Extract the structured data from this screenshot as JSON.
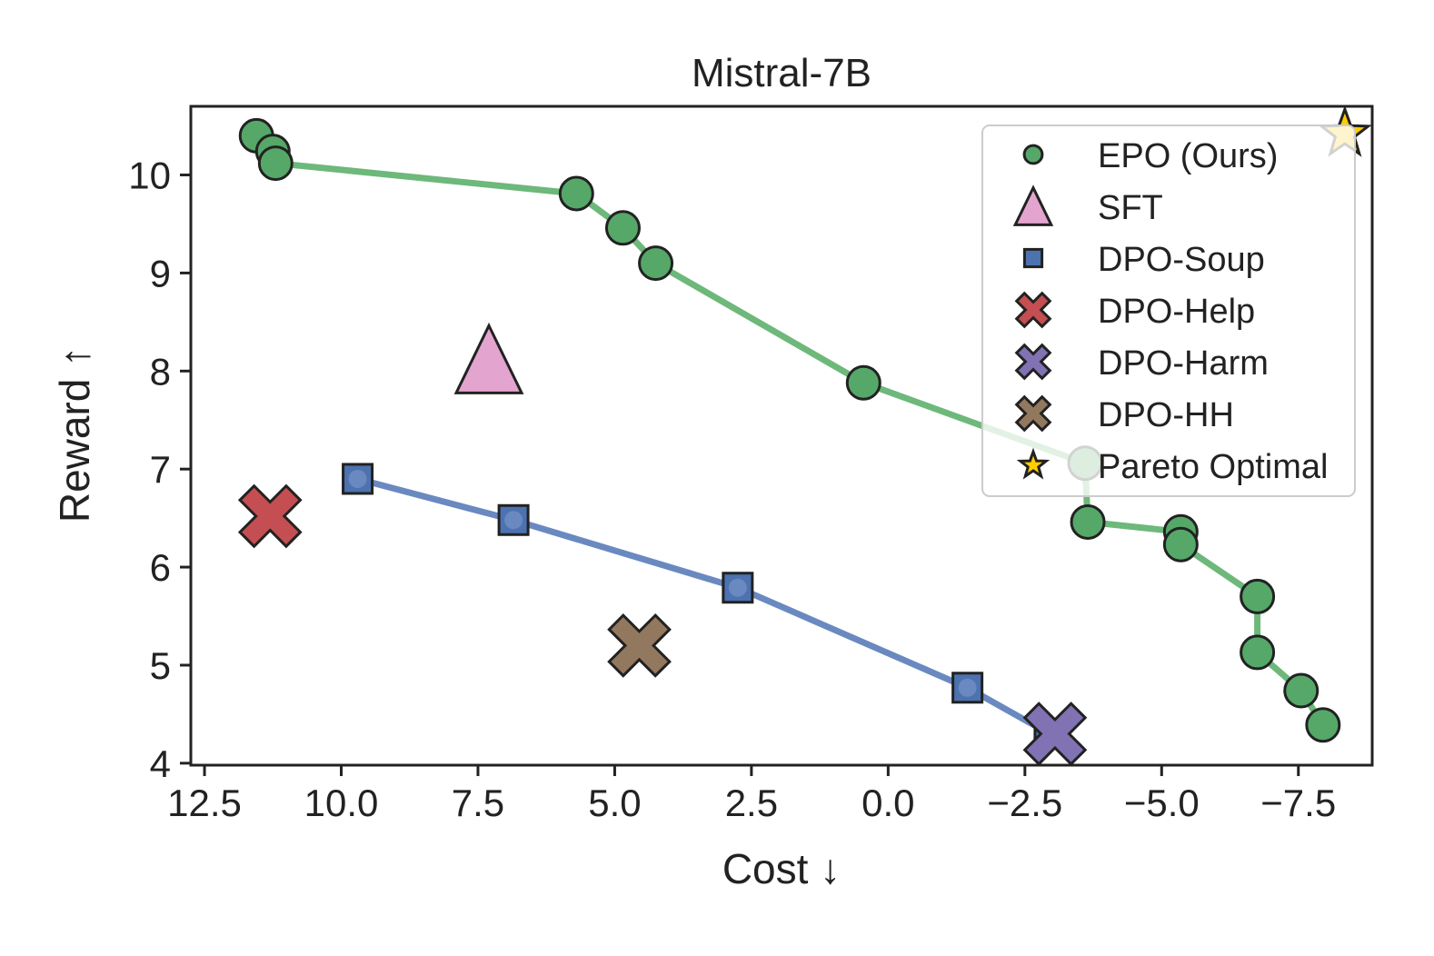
{
  "chart_data": {
    "type": "scatter",
    "title": "Mistral-7B",
    "xlabel": "Cost ↓",
    "ylabel": "Reward ↑",
    "xlim": [
      12.75,
      -8.85
    ],
    "ylim": [
      3.98,
      10.7
    ],
    "x_inverted": true,
    "xticks": [
      12.5,
      10.0,
      7.5,
      5.0,
      2.5,
      0.0,
      -2.5,
      -5.0,
      -7.5
    ],
    "xtick_labels": [
      "12.5",
      "10.0",
      "7.5",
      "5.0",
      "2.5",
      "0.0",
      "−2.5",
      "−5.0",
      "−7.5"
    ],
    "yticks": [
      4,
      5,
      6,
      7,
      8,
      9,
      10
    ],
    "ytick_labels": [
      "4",
      "5",
      "6",
      "7",
      "8",
      "9",
      "10"
    ],
    "grid": false,
    "legend_position": "top-right",
    "series": [
      {
        "name": "EPO (Ours)",
        "marker": "circle",
        "color": "#55a868",
        "line": true,
        "line_color": "#6db87a",
        "points": [
          [
            11.55,
            10.4
          ],
          [
            11.25,
            10.24
          ],
          [
            11.2,
            10.12
          ],
          [
            5.7,
            9.81
          ],
          [
            4.85,
            9.46
          ],
          [
            4.25,
            9.1
          ],
          [
            0.45,
            7.88
          ],
          [
            -3.6,
            7.06
          ],
          [
            -3.65,
            6.46
          ],
          [
            -5.35,
            6.36
          ],
          [
            -5.35,
            6.23
          ],
          [
            -6.75,
            5.7
          ],
          [
            -6.75,
            5.13
          ],
          [
            -7.55,
            4.74
          ],
          [
            -7.95,
            4.39
          ]
        ]
      },
      {
        "name": "SFT",
        "marker": "triangle",
        "color": "#e3a5d0",
        "points": [
          [
            7.3,
            8.12
          ]
        ]
      },
      {
        "name": "DPO-Soup",
        "marker": "square",
        "color": "#4c72b0",
        "line": true,
        "line_color": "#6a89c0",
        "points": [
          [
            9.7,
            6.9
          ],
          [
            6.85,
            6.48
          ],
          [
            2.75,
            5.79
          ],
          [
            -1.45,
            4.77
          ],
          [
            -2.95,
            4.3
          ]
        ]
      },
      {
        "name": "DPO-Help",
        "marker": "x",
        "color": "#c44e52",
        "points": [
          [
            11.3,
            6.52
          ]
        ]
      },
      {
        "name": "DPO-Harm",
        "marker": "x",
        "color": "#8172b3",
        "points": [
          [
            -3.05,
            4.3
          ]
        ]
      },
      {
        "name": "DPO-HH",
        "marker": "x",
        "color": "#937860",
        "points": [
          [
            4.55,
            5.2
          ]
        ]
      },
      {
        "name": "Pareto Optimal",
        "marker": "star",
        "color": "#ffcc00",
        "points": [
          [
            -8.35,
            10.42
          ]
        ]
      }
    ]
  }
}
